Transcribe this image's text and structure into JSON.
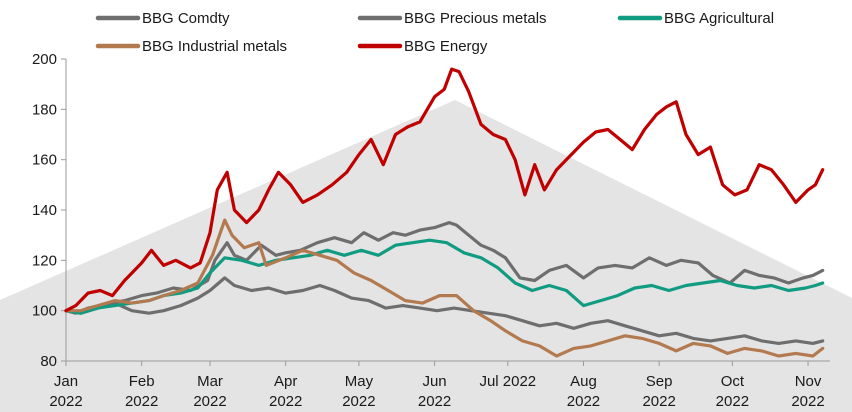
{
  "chart_data": {
    "type": "line",
    "title": "",
    "xlabel": "",
    "ylabel": "",
    "ylim": [
      80,
      200
    ],
    "yticks": [
      80,
      100,
      120,
      140,
      160,
      180,
      200
    ],
    "xlim": [
      "2022-01-01",
      "2022-11-10"
    ],
    "x_tick_labels": [
      {
        "month": "Jan",
        "year": "2022",
        "date": "2022-01-01"
      },
      {
        "month": "Feb",
        "year": "2022",
        "date": "2022-02-01"
      },
      {
        "month": "Mar",
        "year": "2022",
        "date": "2022-03-01"
      },
      {
        "month": "Apr",
        "year": "2022",
        "date": "2022-04-01"
      },
      {
        "month": "May",
        "year": "2022",
        "date": "2022-05-01"
      },
      {
        "month": "Jun",
        "year": "2022",
        "date": "2022-06-01"
      },
      {
        "month": "Jul 2022",
        "year": "",
        "date": "2022-07-01"
      },
      {
        "month": "Aug",
        "year": "2022",
        "date": "2022-08-01"
      },
      {
        "month": "Sep",
        "year": "2022",
        "date": "2022-09-01"
      },
      {
        "month": "Oct",
        "year": "2022",
        "date": "2022-10-01"
      },
      {
        "month": "Nov",
        "year": "2022",
        "date": "2022-11-01"
      }
    ],
    "grid": false,
    "legend_position": "top",
    "background_triangle": true,
    "series": [
      {
        "name": "BBG Comdty",
        "color": "#6e6e6e",
        "points": [
          [
            "2022-01-01",
            100
          ],
          [
            "2022-01-05",
            99
          ],
          [
            "2022-01-10",
            101
          ],
          [
            "2022-01-15",
            102
          ],
          [
            "2022-01-20",
            103
          ],
          [
            "2022-01-25",
            104
          ],
          [
            "2022-02-01",
            106
          ],
          [
            "2022-02-07",
            107
          ],
          [
            "2022-02-14",
            109
          ],
          [
            "2022-02-21",
            108
          ],
          [
            "2022-02-28",
            112
          ],
          [
            "2022-03-03",
            120
          ],
          [
            "2022-03-08",
            127
          ],
          [
            "2022-03-11",
            122
          ],
          [
            "2022-03-16",
            120
          ],
          [
            "2022-03-22",
            126
          ],
          [
            "2022-03-28",
            122
          ],
          [
            "2022-04-01",
            123
          ],
          [
            "2022-04-07",
            124
          ],
          [
            "2022-04-14",
            127
          ],
          [
            "2022-04-21",
            129
          ],
          [
            "2022-04-28",
            127
          ],
          [
            "2022-05-03",
            131
          ],
          [
            "2022-05-09",
            128
          ],
          [
            "2022-05-15",
            131
          ],
          [
            "2022-05-20",
            130
          ],
          [
            "2022-05-26",
            132
          ],
          [
            "2022-06-01",
            133
          ],
          [
            "2022-06-07",
            135
          ],
          [
            "2022-06-10",
            134
          ],
          [
            "2022-06-15",
            130
          ],
          [
            "2022-06-20",
            126
          ],
          [
            "2022-06-25",
            124
          ],
          [
            "2022-06-30",
            121
          ],
          [
            "2022-07-06",
            113
          ],
          [
            "2022-07-12",
            112
          ],
          [
            "2022-07-18",
            116
          ],
          [
            "2022-07-25",
            118
          ],
          [
            "2022-08-01",
            113
          ],
          [
            "2022-08-07",
            117
          ],
          [
            "2022-08-14",
            118
          ],
          [
            "2022-08-21",
            117
          ],
          [
            "2022-08-28",
            121
          ],
          [
            "2022-09-04",
            118
          ],
          [
            "2022-09-10",
            120
          ],
          [
            "2022-09-17",
            119
          ],
          [
            "2022-09-23",
            114
          ],
          [
            "2022-09-30",
            111
          ],
          [
            "2022-10-06",
            116
          ],
          [
            "2022-10-12",
            114
          ],
          [
            "2022-10-18",
            113
          ],
          [
            "2022-10-24",
            111
          ],
          [
            "2022-10-30",
            113
          ],
          [
            "2022-11-03",
            114
          ],
          [
            "2022-11-07",
            116
          ]
        ]
      },
      {
        "name": "BBG Precious metals",
        "color": "#6e6e6e",
        "points": [
          [
            "2022-01-01",
            100
          ],
          [
            "2022-01-07",
            99
          ],
          [
            "2022-01-14",
            101
          ],
          [
            "2022-01-21",
            103
          ],
          [
            "2022-01-28",
            100
          ],
          [
            "2022-02-04",
            99
          ],
          [
            "2022-02-10",
            100
          ],
          [
            "2022-02-17",
            102
          ],
          [
            "2022-02-24",
            105
          ],
          [
            "2022-03-01",
            108
          ],
          [
            "2022-03-07",
            113
          ],
          [
            "2022-03-11",
            110
          ],
          [
            "2022-03-18",
            108
          ],
          [
            "2022-03-25",
            109
          ],
          [
            "2022-04-01",
            107
          ],
          [
            "2022-04-08",
            108
          ],
          [
            "2022-04-15",
            110
          ],
          [
            "2022-04-21",
            108
          ],
          [
            "2022-04-28",
            105
          ],
          [
            "2022-05-05",
            104
          ],
          [
            "2022-05-12",
            101
          ],
          [
            "2022-05-19",
            102
          ],
          [
            "2022-05-26",
            101
          ],
          [
            "2022-06-02",
            100
          ],
          [
            "2022-06-09",
            101
          ],
          [
            "2022-06-16",
            100
          ],
          [
            "2022-06-23",
            99
          ],
          [
            "2022-06-30",
            98
          ],
          [
            "2022-07-07",
            96
          ],
          [
            "2022-07-14",
            94
          ],
          [
            "2022-07-21",
            95
          ],
          [
            "2022-07-28",
            93
          ],
          [
            "2022-08-04",
            95
          ],
          [
            "2022-08-11",
            96
          ],
          [
            "2022-08-18",
            94
          ],
          [
            "2022-08-25",
            92
          ],
          [
            "2022-09-01",
            90
          ],
          [
            "2022-09-08",
            91
          ],
          [
            "2022-09-15",
            89
          ],
          [
            "2022-09-22",
            88
          ],
          [
            "2022-09-29",
            89
          ],
          [
            "2022-10-06",
            90
          ],
          [
            "2022-10-13",
            88
          ],
          [
            "2022-10-20",
            87
          ],
          [
            "2022-10-27",
            88
          ],
          [
            "2022-11-03",
            87
          ],
          [
            "2022-11-07",
            88
          ]
        ]
      },
      {
        "name": "BBG Agricultural",
        "color": "#119c82",
        "points": [
          [
            "2022-01-01",
            100
          ],
          [
            "2022-01-07",
            99
          ],
          [
            "2022-01-14",
            101
          ],
          [
            "2022-01-21",
            102
          ],
          [
            "2022-01-28",
            103
          ],
          [
            "2022-02-04",
            104
          ],
          [
            "2022-02-10",
            106
          ],
          [
            "2022-02-17",
            107
          ],
          [
            "2022-02-24",
            109
          ],
          [
            "2022-03-01",
            115
          ],
          [
            "2022-03-07",
            121
          ],
          [
            "2022-03-14",
            120
          ],
          [
            "2022-03-21",
            118
          ],
          [
            "2022-03-28",
            120
          ],
          [
            "2022-04-04",
            121
          ],
          [
            "2022-04-11",
            122
          ],
          [
            "2022-04-18",
            124
          ],
          [
            "2022-04-25",
            122
          ],
          [
            "2022-05-02",
            124
          ],
          [
            "2022-05-09",
            122
          ],
          [
            "2022-05-16",
            126
          ],
          [
            "2022-05-23",
            127
          ],
          [
            "2022-05-30",
            128
          ],
          [
            "2022-06-06",
            127
          ],
          [
            "2022-06-13",
            123
          ],
          [
            "2022-06-20",
            121
          ],
          [
            "2022-06-27",
            117
          ],
          [
            "2022-07-04",
            111
          ],
          [
            "2022-07-11",
            108
          ],
          [
            "2022-07-18",
            110
          ],
          [
            "2022-07-25",
            108
          ],
          [
            "2022-08-01",
            102
          ],
          [
            "2022-08-08",
            104
          ],
          [
            "2022-08-15",
            106
          ],
          [
            "2022-08-22",
            109
          ],
          [
            "2022-08-29",
            110
          ],
          [
            "2022-09-05",
            108
          ],
          [
            "2022-09-12",
            110
          ],
          [
            "2022-09-19",
            111
          ],
          [
            "2022-09-26",
            112
          ],
          [
            "2022-10-03",
            110
          ],
          [
            "2022-10-10",
            109
          ],
          [
            "2022-10-17",
            110
          ],
          [
            "2022-10-24",
            108
          ],
          [
            "2022-10-31",
            109
          ],
          [
            "2022-11-04",
            110
          ],
          [
            "2022-11-07",
            111
          ]
        ]
      },
      {
        "name": "BBG Industrial metals",
        "color": "#b37a50",
        "points": [
          [
            "2022-01-01",
            100
          ],
          [
            "2022-01-07",
            100
          ],
          [
            "2022-01-14",
            102
          ],
          [
            "2022-01-21",
            104
          ],
          [
            "2022-01-28",
            103
          ],
          [
            "2022-02-04",
            104
          ],
          [
            "2022-02-10",
            106
          ],
          [
            "2022-02-17",
            108
          ],
          [
            "2022-02-24",
            111
          ],
          [
            "2022-03-02",
            122
          ],
          [
            "2022-03-07",
            136
          ],
          [
            "2022-03-10",
            130
          ],
          [
            "2022-03-15",
            125
          ],
          [
            "2022-03-21",
            127
          ],
          [
            "2022-03-24",
            118
          ],
          [
            "2022-04-01",
            121
          ],
          [
            "2022-04-08",
            124
          ],
          [
            "2022-04-15",
            122
          ],
          [
            "2022-04-22",
            120
          ],
          [
            "2022-04-29",
            115
          ],
          [
            "2022-05-06",
            112
          ],
          [
            "2022-05-13",
            108
          ],
          [
            "2022-05-20",
            104
          ],
          [
            "2022-05-27",
            103
          ],
          [
            "2022-06-03",
            106
          ],
          [
            "2022-06-10",
            106
          ],
          [
            "2022-06-17",
            100
          ],
          [
            "2022-06-24",
            96
          ],
          [
            "2022-06-30",
            92
          ],
          [
            "2022-07-07",
            88
          ],
          [
            "2022-07-14",
            86
          ],
          [
            "2022-07-21",
            82
          ],
          [
            "2022-07-28",
            85
          ],
          [
            "2022-08-04",
            86
          ],
          [
            "2022-08-11",
            88
          ],
          [
            "2022-08-18",
            90
          ],
          [
            "2022-08-25",
            89
          ],
          [
            "2022-09-01",
            87
          ],
          [
            "2022-09-08",
            84
          ],
          [
            "2022-09-15",
            87
          ],
          [
            "2022-09-22",
            86
          ],
          [
            "2022-09-29",
            83
          ],
          [
            "2022-10-06",
            85
          ],
          [
            "2022-10-13",
            84
          ],
          [
            "2022-10-20",
            82
          ],
          [
            "2022-10-27",
            83
          ],
          [
            "2022-11-03",
            82
          ],
          [
            "2022-11-07",
            85
          ]
        ]
      },
      {
        "name": "BBG Energy",
        "color": "#c00000",
        "points": [
          [
            "2022-01-01",
            100
          ],
          [
            "2022-01-05",
            102
          ],
          [
            "2022-01-10",
            107
          ],
          [
            "2022-01-15",
            108
          ],
          [
            "2022-01-20",
            106
          ],
          [
            "2022-01-25",
            112
          ],
          [
            "2022-02-01",
            119
          ],
          [
            "2022-02-05",
            124
          ],
          [
            "2022-02-10",
            118
          ],
          [
            "2022-02-15",
            120
          ],
          [
            "2022-02-21",
            117
          ],
          [
            "2022-02-25",
            119
          ],
          [
            "2022-03-01",
            131
          ],
          [
            "2022-03-04",
            148
          ],
          [
            "2022-03-08",
            155
          ],
          [
            "2022-03-11",
            140
          ],
          [
            "2022-03-16",
            135
          ],
          [
            "2022-03-21",
            140
          ],
          [
            "2022-03-25",
            148
          ],
          [
            "2022-03-29",
            155
          ],
          [
            "2022-04-03",
            150
          ],
          [
            "2022-04-08",
            143
          ],
          [
            "2022-04-14",
            146
          ],
          [
            "2022-04-20",
            150
          ],
          [
            "2022-04-26",
            155
          ],
          [
            "2022-05-01",
            162
          ],
          [
            "2022-05-06",
            168
          ],
          [
            "2022-05-11",
            158
          ],
          [
            "2022-05-16",
            170
          ],
          [
            "2022-05-21",
            173
          ],
          [
            "2022-05-26",
            175
          ],
          [
            "2022-06-01",
            185
          ],
          [
            "2022-06-05",
            188
          ],
          [
            "2022-06-08",
            196
          ],
          [
            "2022-06-11",
            195
          ],
          [
            "2022-06-15",
            187
          ],
          [
            "2022-06-20",
            174
          ],
          [
            "2022-06-25",
            170
          ],
          [
            "2022-06-30",
            168
          ],
          [
            "2022-07-04",
            160
          ],
          [
            "2022-07-08",
            146
          ],
          [
            "2022-07-12",
            158
          ],
          [
            "2022-07-16",
            148
          ],
          [
            "2022-07-21",
            156
          ],
          [
            "2022-07-27",
            162
          ],
          [
            "2022-08-01",
            167
          ],
          [
            "2022-08-06",
            171
          ],
          [
            "2022-08-11",
            172
          ],
          [
            "2022-08-16",
            168
          ],
          [
            "2022-08-21",
            164
          ],
          [
            "2022-08-26",
            172
          ],
          [
            "2022-08-31",
            178
          ],
          [
            "2022-09-04",
            181
          ],
          [
            "2022-09-08",
            183
          ],
          [
            "2022-09-12",
            170
          ],
          [
            "2022-09-17",
            162
          ],
          [
            "2022-09-22",
            165
          ],
          [
            "2022-09-27",
            150
          ],
          [
            "2022-10-02",
            146
          ],
          [
            "2022-10-07",
            148
          ],
          [
            "2022-10-12",
            158
          ],
          [
            "2022-10-17",
            156
          ],
          [
            "2022-10-22",
            150
          ],
          [
            "2022-10-27",
            143
          ],
          [
            "2022-11-01",
            148
          ],
          [
            "2022-11-04",
            150
          ],
          [
            "2022-11-07",
            156
          ]
        ]
      }
    ]
  }
}
